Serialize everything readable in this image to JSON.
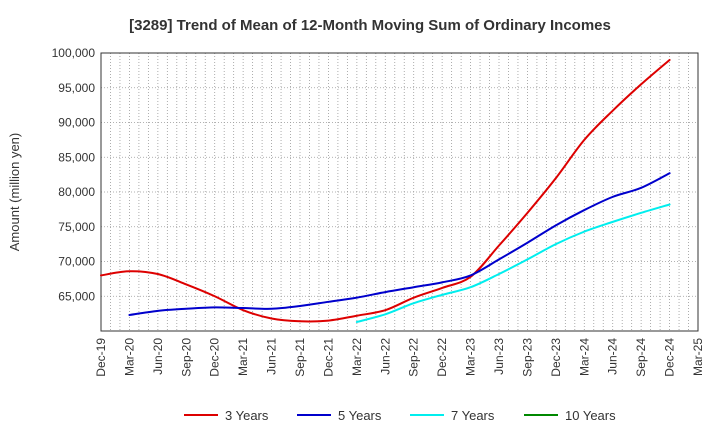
{
  "chart_data": {
    "type": "line",
    "title": "[3289]  Trend of Mean of 12-Month Moving Sum of Ordinary Incomes",
    "xlabel": "",
    "ylabel": "Amount (million yen)",
    "ylim": [
      60000,
      100000
    ],
    "yticks": [
      65000,
      70000,
      75000,
      80000,
      85000,
      90000,
      95000,
      100000
    ],
    "ytick_labels": [
      "65,000",
      "70,000",
      "75,000",
      "80,000",
      "85,000",
      "90,000",
      "95,000",
      "100,000"
    ],
    "x_tick_labels": [
      "Dec-19",
      "Mar-20",
      "Jun-20",
      "Sep-20",
      "Dec-20",
      "Mar-21",
      "Jun-21",
      "Sep-21",
      "Dec-21",
      "Mar-22",
      "Jun-22",
      "Sep-22",
      "Dec-22",
      "Mar-23",
      "Jun-23",
      "Sep-23",
      "Dec-23",
      "Mar-24",
      "Jun-24",
      "Sep-24",
      "Dec-24",
      "Mar-25"
    ],
    "grid": true,
    "legend_position": "bottom",
    "series": [
      {
        "name": "3 Years",
        "color": "#dd0000",
        "start_index": 0,
        "values": [
          68000,
          68600,
          68200,
          66700,
          65000,
          63000,
          61800,
          61400,
          61500,
          62200,
          63000,
          64800,
          66200,
          67800,
          72300,
          77000,
          82000,
          87500,
          91700,
          95500,
          99000
        ]
      },
      {
        "name": "5 Years",
        "color": "#0000cc",
        "start_index": 1,
        "values": [
          62300,
          62900,
          63200,
          63400,
          63300,
          63200,
          63600,
          64200,
          64800,
          65600,
          66300,
          67000,
          68000,
          70300,
          72700,
          75200,
          77400,
          79300,
          80600,
          82700
        ]
      },
      {
        "name": "7 Years",
        "color": "#00eeee",
        "start_index": 9,
        "values": [
          61300,
          62400,
          64000,
          65200,
          66300,
          68200,
          70300,
          72500,
          74300,
          75700,
          77000,
          78200
        ]
      },
      {
        "name": "10 Years",
        "color": "#008800",
        "start_index": 0,
        "values": []
      }
    ]
  }
}
